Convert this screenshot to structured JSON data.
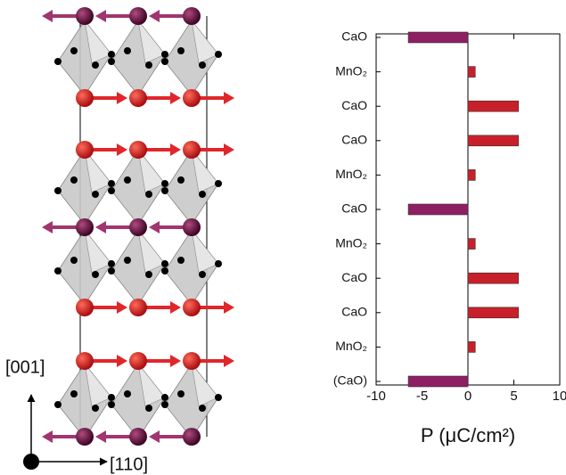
{
  "chart_data": {
    "type": "barh",
    "categories": [
      "CaO",
      "MnO₂",
      "CaO",
      "CaO",
      "MnO₂",
      "CaO",
      "MnO₂",
      "CaO",
      "CaO",
      "MnO₂",
      "(CaO)"
    ],
    "values": [
      -6.5,
      0.8,
      5.5,
      5.5,
      0.8,
      -6.5,
      0.8,
      5.5,
      5.5,
      0.8,
      -6.5
    ],
    "colors": [
      "#8e1f63",
      "#c8202a",
      "#c8202a",
      "#c8202a",
      "#c8202a",
      "#8e1f63",
      "#c8202a",
      "#c8202a",
      "#c8202a",
      "#c8202a",
      "#8e1f63"
    ],
    "xlim": [
      -10,
      10
    ],
    "xticks": [
      -10,
      -5,
      0,
      5,
      10
    ],
    "xlabel": "P (μC/cm²)"
  },
  "structure": {
    "axis_vertical": "[001]",
    "axis_horizontal": "[110]"
  }
}
